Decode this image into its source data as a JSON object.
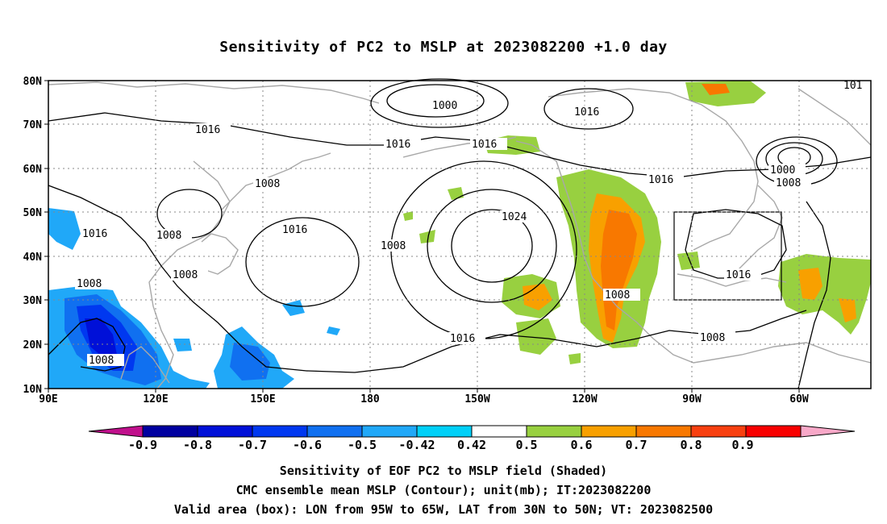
{
  "title": "Sensitivity of PC2 to MSLP at 2023082200 +1.0 day",
  "map": {
    "lat_labels": [
      "80N",
      "70N",
      "60N",
      "50N",
      "40N",
      "30N",
      "20N",
      "10N"
    ],
    "lon_labels": [
      "90E",
      "120E",
      "150E",
      "180",
      "150W",
      "120W",
      "90W",
      "60W"
    ],
    "contour_labels": [
      "1000",
      "1016",
      "1016",
      "1016",
      "101",
      "1016",
      "1000",
      "1008",
      "1008",
      "1016",
      "1008",
      "1016",
      "1024",
      "1008",
      "1008",
      "1008",
      "1016",
      "1008",
      "1016",
      "1008",
      "1008"
    ],
    "valid_box": {
      "lon_from": "95W",
      "lon_to": "65W",
      "lat_from": "30N",
      "lat_to": "50N"
    }
  },
  "colorbar": {
    "labels": [
      "-0.9",
      "-0.8",
      "-0.7",
      "-0.6",
      "-0.5",
      "-0.42",
      "0.42",
      "0.5",
      "0.6",
      "0.7",
      "0.8",
      "0.9"
    ],
    "colors": [
      "#c0108c",
      "#0000a0",
      "#0010d8",
      "#0038f0",
      "#1070f0",
      "#20a8f8",
      "#00d0f8",
      "#ffffff",
      "#98d040",
      "#f8a000",
      "#f87800",
      "#f84010",
      "#f80000",
      "#f8a8c8"
    ]
  },
  "captions": [
    "Sensitivity of EOF PC2 to MSLP field (Shaded)",
    "CMC ensemble mean MSLP (Contour); unit(mb); IT:2023082200",
    "Valid area (box): LON from 95W to 65W, LAT from 30N to 50N; VT: 2023082500"
  ]
}
